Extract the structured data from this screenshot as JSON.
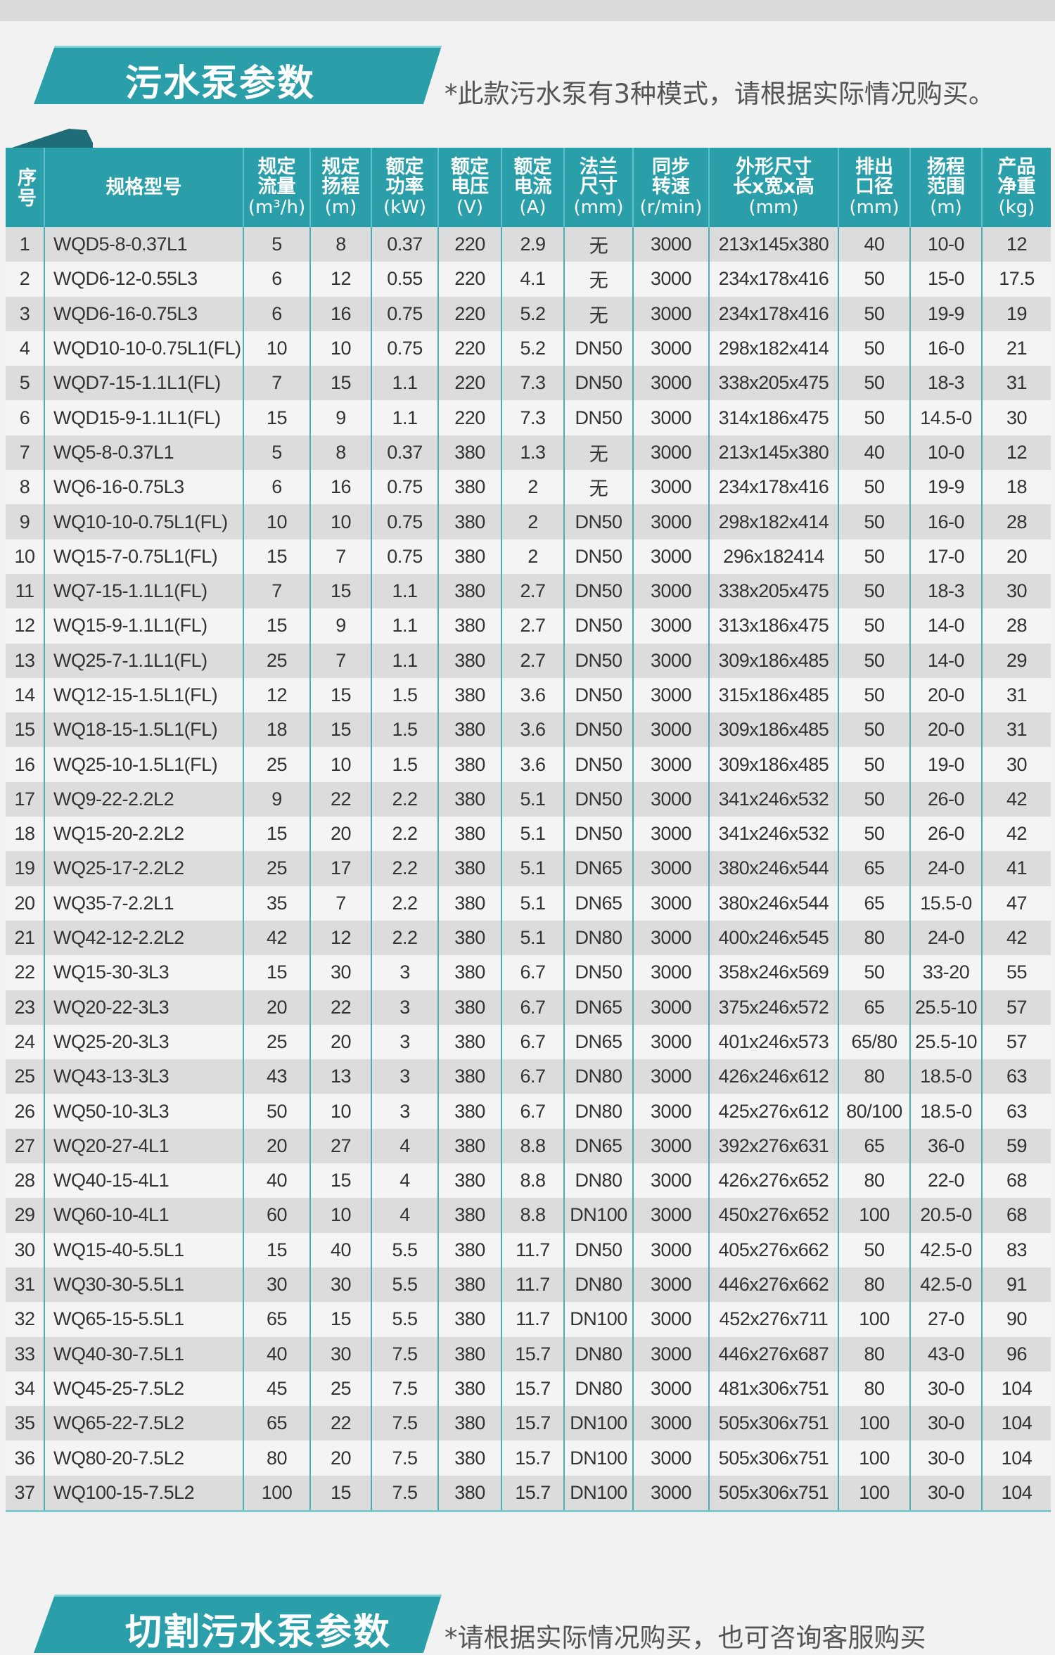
{
  "top_section": {
    "title": "污水泵参数",
    "note": "*此款污水泵有3种模式，请根据实际情况购买。"
  },
  "table": {
    "headers": [
      {
        "label": "序号",
        "unit": ""
      },
      {
        "label": "规格型号",
        "unit": ""
      },
      {
        "label": "规定流量",
        "unit": "(m³/h)"
      },
      {
        "label": "规定扬程",
        "unit": "(m)"
      },
      {
        "label": "额定功率",
        "unit": "(kW)"
      },
      {
        "label": "额定电压",
        "unit": "(V)"
      },
      {
        "label": "额定电流",
        "unit": "(A)"
      },
      {
        "label": "法兰尺寸",
        "unit": "(mm)"
      },
      {
        "label": "同步转速",
        "unit": "(r/min)"
      },
      {
        "label": "外形尺寸长x宽x高",
        "unit": "(mm)"
      },
      {
        "label": "排出口径",
        "unit": "(mm)"
      },
      {
        "label": "扬程范围",
        "unit": "(m)"
      },
      {
        "label": "产品净重",
        "unit": "(kg)"
      }
    ],
    "rows": [
      [
        "1",
        "WQD5-8-0.37L1",
        "5",
        "8",
        "0.37",
        "220",
        "2.9",
        "无",
        "3000",
        "213x145x380",
        "40",
        "10-0",
        "12"
      ],
      [
        "2",
        "WQD6-12-0.55L3",
        "6",
        "12",
        "0.55",
        "220",
        "4.1",
        "无",
        "3000",
        "234x178x416",
        "50",
        "15-0",
        "17.5"
      ],
      [
        "3",
        "WQD6-16-0.75L3",
        "6",
        "16",
        "0.75",
        "220",
        "5.2",
        "无",
        "3000",
        "234x178x416",
        "50",
        "19-9",
        "19"
      ],
      [
        "4",
        "WQD10-10-0.75L1(FL)",
        "10",
        "10",
        "0.75",
        "220",
        "5.2",
        "DN50",
        "3000",
        "298x182x414",
        "50",
        "16-0",
        "21"
      ],
      [
        "5",
        "WQD7-15-1.1L1(FL)",
        "7",
        "15",
        "1.1",
        "220",
        "7.3",
        "DN50",
        "3000",
        "338x205x475",
        "50",
        "18-3",
        "31"
      ],
      [
        "6",
        "WQD15-9-1.1L1(FL)",
        "15",
        "9",
        "1.1",
        "220",
        "7.3",
        "DN50",
        "3000",
        "314x186x475",
        "50",
        "14.5-0",
        "30"
      ],
      [
        "7",
        "WQ5-8-0.37L1",
        "5",
        "8",
        "0.37",
        "380",
        "1.3",
        "无",
        "3000",
        "213x145x380",
        "40",
        "10-0",
        "12"
      ],
      [
        "8",
        "WQ6-16-0.75L3",
        "6",
        "16",
        "0.75",
        "380",
        "2",
        "无",
        "3000",
        "234x178x416",
        "50",
        "19-9",
        "18"
      ],
      [
        "9",
        "WQ10-10-0.75L1(FL)",
        "10",
        "10",
        "0.75",
        "380",
        "2",
        "DN50",
        "3000",
        "298x182x414",
        "50",
        "16-0",
        "28"
      ],
      [
        "10",
        "WQ15-7-0.75L1(FL)",
        "15",
        "7",
        "0.75",
        "380",
        "2",
        "DN50",
        "3000",
        "296x182414",
        "50",
        "17-0",
        "20"
      ],
      [
        "11",
        "WQ7-15-1.1L1(FL)",
        "7",
        "15",
        "1.1",
        "380",
        "2.7",
        "DN50",
        "3000",
        "338x205x475",
        "50",
        "18-3",
        "30"
      ],
      [
        "12",
        "WQ15-9-1.1L1(FL)",
        "15",
        "9",
        "1.1",
        "380",
        "2.7",
        "DN50",
        "3000",
        "313x186x475",
        "50",
        "14-0",
        "28"
      ],
      [
        "13",
        "WQ25-7-1.1L1(FL)",
        "25",
        "7",
        "1.1",
        "380",
        "2.7",
        "DN50",
        "3000",
        "309x186x485",
        "50",
        "14-0",
        "29"
      ],
      [
        "14",
        "WQ12-15-1.5L1(FL)",
        "12",
        "15",
        "1.5",
        "380",
        "3.6",
        "DN50",
        "3000",
        "315x186x485",
        "50",
        "20-0",
        "31"
      ],
      [
        "15",
        "WQ18-15-1.5L1(FL)",
        "18",
        "15",
        "1.5",
        "380",
        "3.6",
        "DN50",
        "3000",
        "309x186x485",
        "50",
        "20-0",
        "31"
      ],
      [
        "16",
        "WQ25-10-1.5L1(FL)",
        "25",
        "10",
        "1.5",
        "380",
        "3.6",
        "DN50",
        "3000",
        "309x186x485",
        "50",
        "19-0",
        "30"
      ],
      [
        "17",
        "WQ9-22-2.2L2",
        "9",
        "22",
        "2.2",
        "380",
        "5.1",
        "DN50",
        "3000",
        "341x246x532",
        "50",
        "26-0",
        "42"
      ],
      [
        "18",
        "WQ15-20-2.2L2",
        "15",
        "20",
        "2.2",
        "380",
        "5.1",
        "DN50",
        "3000",
        "341x246x532",
        "50",
        "26-0",
        "42"
      ],
      [
        "19",
        "WQ25-17-2.2L2",
        "25",
        "17",
        "2.2",
        "380",
        "5.1",
        "DN65",
        "3000",
        "380x246x544",
        "65",
        "24-0",
        "41"
      ],
      [
        "20",
        "WQ35-7-2.2L1",
        "35",
        "7",
        "2.2",
        "380",
        "5.1",
        "DN65",
        "3000",
        "380x246x544",
        "65",
        "15.5-0",
        "47"
      ],
      [
        "21",
        "WQ42-12-2.2L2",
        "42",
        "12",
        "2.2",
        "380",
        "5.1",
        "DN80",
        "3000",
        "400x246x545",
        "80",
        "24-0",
        "42"
      ],
      [
        "22",
        "WQ15-30-3L3",
        "15",
        "30",
        "3",
        "380",
        "6.7",
        "DN50",
        "3000",
        "358x246x569",
        "50",
        "33-20",
        "55"
      ],
      [
        "23",
        "WQ20-22-3L3",
        "20",
        "22",
        "3",
        "380",
        "6.7",
        "DN65",
        "3000",
        "375x246x572",
        "65",
        "25.5-10",
        "57"
      ],
      [
        "24",
        "WQ25-20-3L3",
        "25",
        "20",
        "3",
        "380",
        "6.7",
        "DN65",
        "3000",
        "401x246x573",
        "65/80",
        "25.5-10",
        "57"
      ],
      [
        "25",
        "WQ43-13-3L3",
        "43",
        "13",
        "3",
        "380",
        "6.7",
        "DN80",
        "3000",
        "426x246x612",
        "80",
        "18.5-0",
        "63"
      ],
      [
        "26",
        "WQ50-10-3L3",
        "50",
        "10",
        "3",
        "380",
        "6.7",
        "DN80",
        "3000",
        "425x276x612",
        "80/100",
        "18.5-0",
        "63"
      ],
      [
        "27",
        "WQ20-27-4L1",
        "20",
        "27",
        "4",
        "380",
        "8.8",
        "DN65",
        "3000",
        "392x276x631",
        "65",
        "36-0",
        "59"
      ],
      [
        "28",
        "WQ40-15-4L1",
        "40",
        "15",
        "4",
        "380",
        "8.8",
        "DN80",
        "3000",
        "426x276x652",
        "80",
        "22-0",
        "68"
      ],
      [
        "29",
        "WQ60-10-4L1",
        "60",
        "10",
        "4",
        "380",
        "8.8",
        "DN100",
        "3000",
        "450x276x652",
        "100",
        "20.5-0",
        "68"
      ],
      [
        "30",
        "WQ15-40-5.5L1",
        "15",
        "40",
        "5.5",
        "380",
        "11.7",
        "DN50",
        "3000",
        "405x276x662",
        "50",
        "42.5-0",
        "83"
      ],
      [
        "31",
        "WQ30-30-5.5L1",
        "30",
        "30",
        "5.5",
        "380",
        "11.7",
        "DN80",
        "3000",
        "446x276x662",
        "80",
        "42.5-0",
        "91"
      ],
      [
        "32",
        "WQ65-15-5.5L1",
        "65",
        "15",
        "5.5",
        "380",
        "11.7",
        "DN100",
        "3000",
        "452x276x711",
        "100",
        "27-0",
        "90"
      ],
      [
        "33",
        "WQ40-30-7.5L1",
        "40",
        "30",
        "7.5",
        "380",
        "15.7",
        "DN80",
        "3000",
        "446x276x687",
        "80",
        "43-0",
        "96"
      ],
      [
        "34",
        "WQ45-25-7.5L2",
        "45",
        "25",
        "7.5",
        "380",
        "15.7",
        "DN80",
        "3000",
        "481x306x751",
        "80",
        "30-0",
        "104"
      ],
      [
        "35",
        "WQ65-22-7.5L2",
        "65",
        "22",
        "7.5",
        "380",
        "15.7",
        "DN100",
        "3000",
        "505x306x751",
        "100",
        "30-0",
        "104"
      ],
      [
        "36",
        "WQ80-20-7.5L2",
        "80",
        "20",
        "7.5",
        "380",
        "15.7",
        "DN100",
        "3000",
        "505x306x751",
        "100",
        "30-0",
        "104"
      ],
      [
        "37",
        "WQ100-15-7.5L2",
        "100",
        "15",
        "7.5",
        "380",
        "15.7",
        "DN100",
        "3000",
        "505x306x751",
        "100",
        "30-0",
        "104"
      ]
    ]
  },
  "bottom_section": {
    "title": "切割污水泵参数",
    "note": "*请根据实际情况购买，也可咨询客服购买"
  },
  "colors": {
    "accent": "#2a9fa9",
    "row_odd": "#dcdcdc",
    "row_even": "#f4f4f4"
  }
}
